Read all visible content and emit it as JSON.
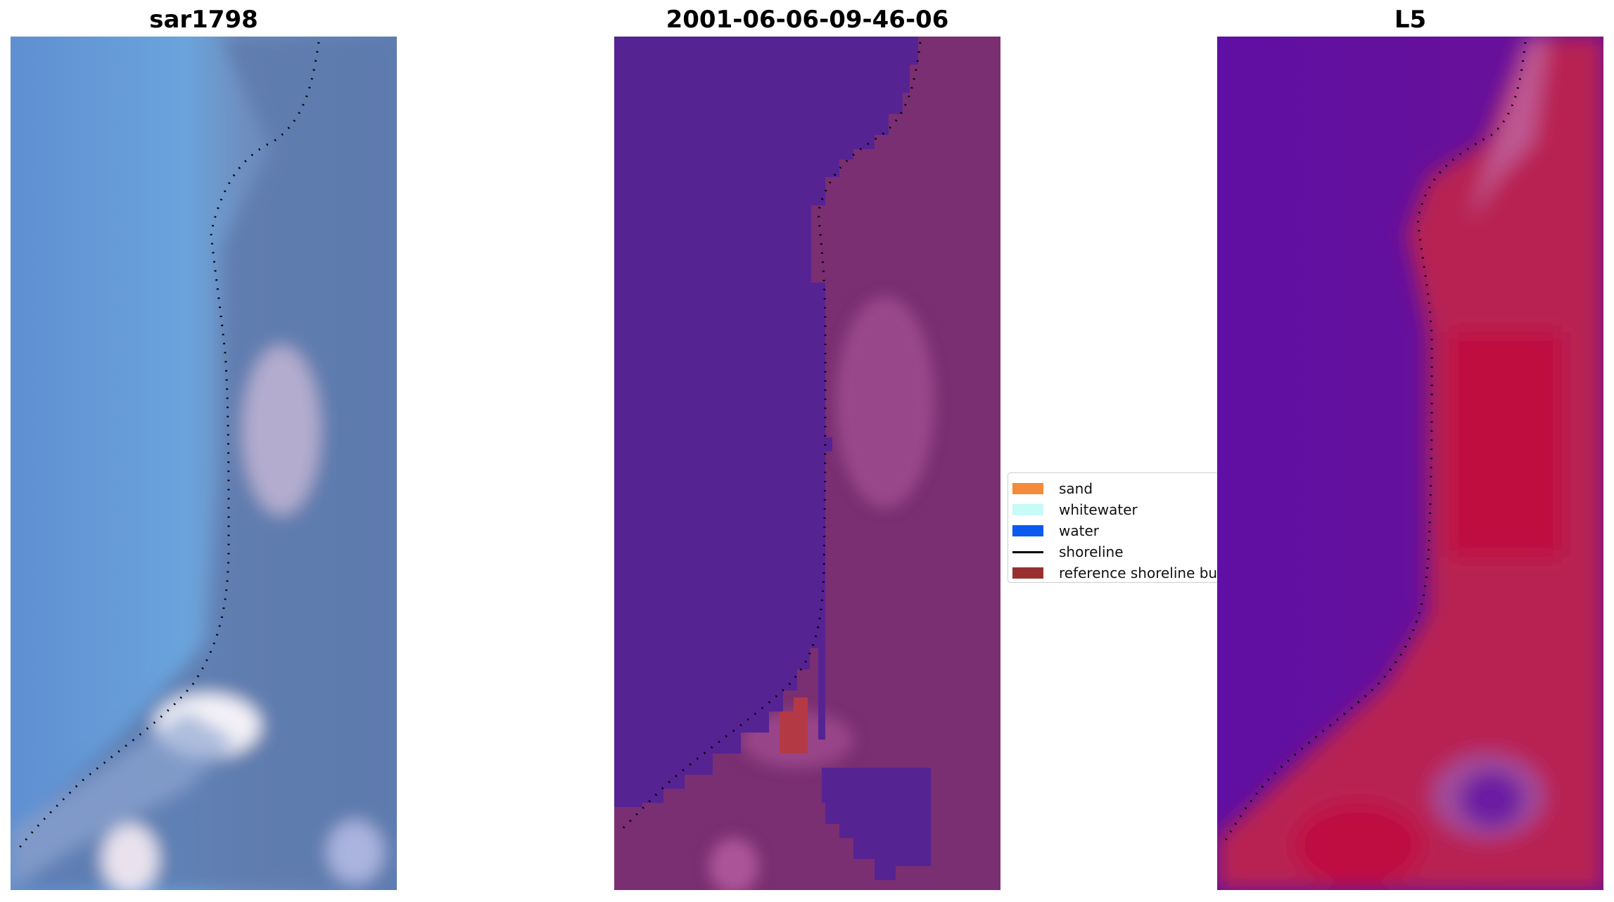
{
  "panels": [
    {
      "title": "sar1798"
    },
    {
      "title": "2001-06-06-09-46-06"
    },
    {
      "title": "L5"
    }
  ],
  "legend": {
    "items": [
      {
        "label": "sand",
        "color": "#f58b3a",
        "kind": "patch"
      },
      {
        "label": "whitewater",
        "color": "#c6fbf8",
        "kind": "patch"
      },
      {
        "label": "water",
        "color": "#0a5af0",
        "kind": "patch"
      },
      {
        "label": "shoreline",
        "color": "#000000",
        "kind": "line"
      },
      {
        "label": "reference shoreline buffer",
        "color": "#993030",
        "kind": "patch"
      }
    ]
  }
}
